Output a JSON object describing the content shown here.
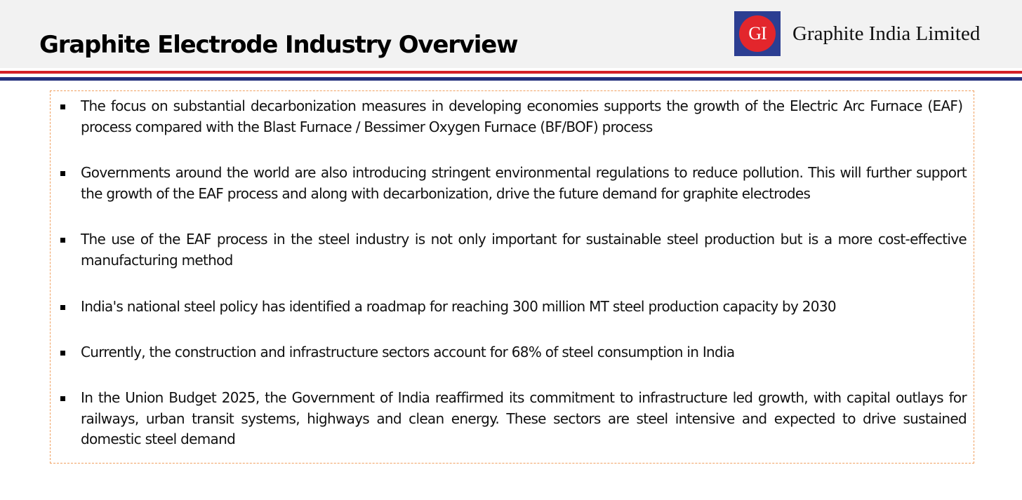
{
  "header": {
    "title": "Graphite Electrode Industry Overview",
    "logo_text": "GI",
    "company_name": "Graphite India Limited"
  },
  "bullets": [
    "The focus on substantial decarbonization measures in developing economies supports the growth of the Electric Arc Furnace (EAF)  process compared with the Blast Furnace / Bessimer Oxygen Furnace (BF/BOF) process",
    "Governments around the world are also introducing stringent environmental regulations to reduce pollution. This will further support the growth of the EAF process and along with decarbonization, drive the future demand for graphite electrodes",
    "The use of the EAF process in the steel industry is not only important for sustainable steel production but is a more cost-effective manufacturing method",
    "India's national steel policy has identified a roadmap for reaching 300 million MT steel production capacity by 2030",
    "Currently, the construction and infrastructure sectors account for 68% of steel consumption in India",
    "In the Union Budget 2025, the Government of India reaffirmed its commitment to infrastructure led growth, with capital outlays for railways, urban transit systems, highways and clean energy. These sectors are steel intensive and expected to drive sustained domestic steel demand"
  ],
  "colors": {
    "header_background": "#f2f2f2",
    "rule_red": "#d42027",
    "rule_blue": "#24307d",
    "logo_blue": "#2c3e92",
    "logo_red": "#e3262c",
    "box_border": "#f0a060"
  }
}
